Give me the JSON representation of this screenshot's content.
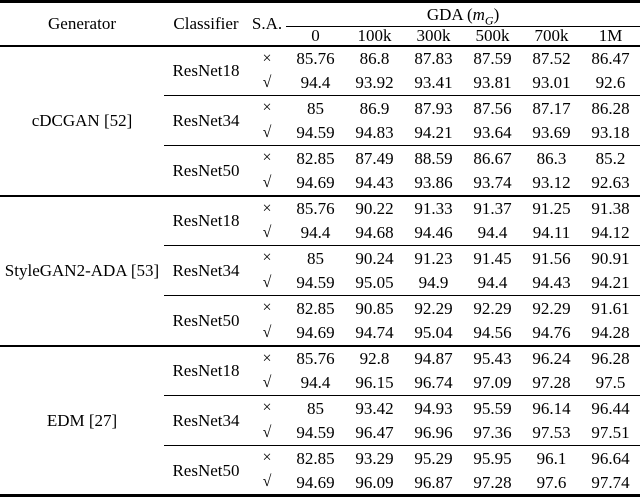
{
  "page": {
    "background": "#ffffff",
    "text_color": "#000000",
    "rule_color": "#000000"
  },
  "table": {
    "header": {
      "generator": "Generator",
      "classifier": "Classifier",
      "sa": "S.A.",
      "gda_prefix": "GDA (",
      "gda_var": "m",
      "gda_sub": "G",
      "gda_close": ")",
      "columns": [
        "0",
        "100k",
        "300k",
        "500k",
        "700k",
        "1M"
      ]
    },
    "symbols": {
      "no": "×",
      "yes": "√"
    },
    "groups": [
      {
        "generator": "cDCGAN [52]",
        "classifiers": [
          {
            "name": "ResNet18",
            "rows": [
              {
                "sa": "×",
                "values": [
                  "85.76",
                  "86.8",
                  "87.83",
                  "87.59",
                  "87.52",
                  "86.47"
                ]
              },
              {
                "sa": "√",
                "values": [
                  "94.4",
                  "93.92",
                  "93.41",
                  "93.81",
                  "93.01",
                  "92.6"
                ]
              }
            ]
          },
          {
            "name": "ResNet34",
            "rows": [
              {
                "sa": "×",
                "values": [
                  "85",
                  "86.9",
                  "87.93",
                  "87.56",
                  "87.17",
                  "86.28"
                ]
              },
              {
                "sa": "√",
                "values": [
                  "94.59",
                  "94.83",
                  "94.21",
                  "93.64",
                  "93.69",
                  "93.18"
                ]
              }
            ]
          },
          {
            "name": "ResNet50",
            "rows": [
              {
                "sa": "×",
                "values": [
                  "82.85",
                  "87.49",
                  "88.59",
                  "86.67",
                  "86.3",
                  "85.2"
                ]
              },
              {
                "sa": "√",
                "values": [
                  "94.69",
                  "94.43",
                  "93.86",
                  "93.74",
                  "93.12",
                  "92.63"
                ]
              }
            ]
          }
        ]
      },
      {
        "generator": "StyleGAN2-ADA [53]",
        "classifiers": [
          {
            "name": "ResNet18",
            "rows": [
              {
                "sa": "×",
                "values": [
                  "85.76",
                  "90.22",
                  "91.33",
                  "91.37",
                  "91.25",
                  "91.38"
                ]
              },
              {
                "sa": "√",
                "values": [
                  "94.4",
                  "94.68",
                  "94.46",
                  "94.4",
                  "94.11",
                  "94.12"
                ]
              }
            ]
          },
          {
            "name": "ResNet34",
            "rows": [
              {
                "sa": "×",
                "values": [
                  "85",
                  "90.24",
                  "91.23",
                  "91.45",
                  "91.56",
                  "90.91"
                ]
              },
              {
                "sa": "√",
                "values": [
                  "94.59",
                  "95.05",
                  "94.9",
                  "94.4",
                  "94.43",
                  "94.21"
                ]
              }
            ]
          },
          {
            "name": "ResNet50",
            "rows": [
              {
                "sa": "×",
                "values": [
                  "82.85",
                  "90.85",
                  "92.29",
                  "92.29",
                  "92.29",
                  "91.61"
                ]
              },
              {
                "sa": "√",
                "values": [
                  "94.69",
                  "94.74",
                  "95.04",
                  "94.56",
                  "94.76",
                  "94.28"
                ]
              }
            ]
          }
        ]
      },
      {
        "generator": "EDM [27]",
        "classifiers": [
          {
            "name": "ResNet18",
            "rows": [
              {
                "sa": "×",
                "values": [
                  "85.76",
                  "92.8",
                  "94.87",
                  "95.43",
                  "96.24",
                  "96.28"
                ]
              },
              {
                "sa": "√",
                "values": [
                  "94.4",
                  "96.15",
                  "96.74",
                  "97.09",
                  "97.28",
                  "97.5"
                ]
              }
            ]
          },
          {
            "name": "ResNet34",
            "rows": [
              {
                "sa": "×",
                "values": [
                  "85",
                  "93.42",
                  "94.93",
                  "95.59",
                  "96.14",
                  "96.44"
                ]
              },
              {
                "sa": "√",
                "values": [
                  "94.59",
                  "96.47",
                  "96.96",
                  "97.36",
                  "97.53",
                  "97.51"
                ]
              }
            ]
          },
          {
            "name": "ResNet50",
            "rows": [
              {
                "sa": "×",
                "values": [
                  "82.85",
                  "93.29",
                  "95.29",
                  "95.95",
                  "96.1",
                  "96.64"
                ]
              },
              {
                "sa": "√",
                "values": [
                  "94.69",
                  "96.09",
                  "96.87",
                  "97.28",
                  "97.6",
                  "97.74"
                ]
              }
            ]
          }
        ]
      }
    ]
  }
}
